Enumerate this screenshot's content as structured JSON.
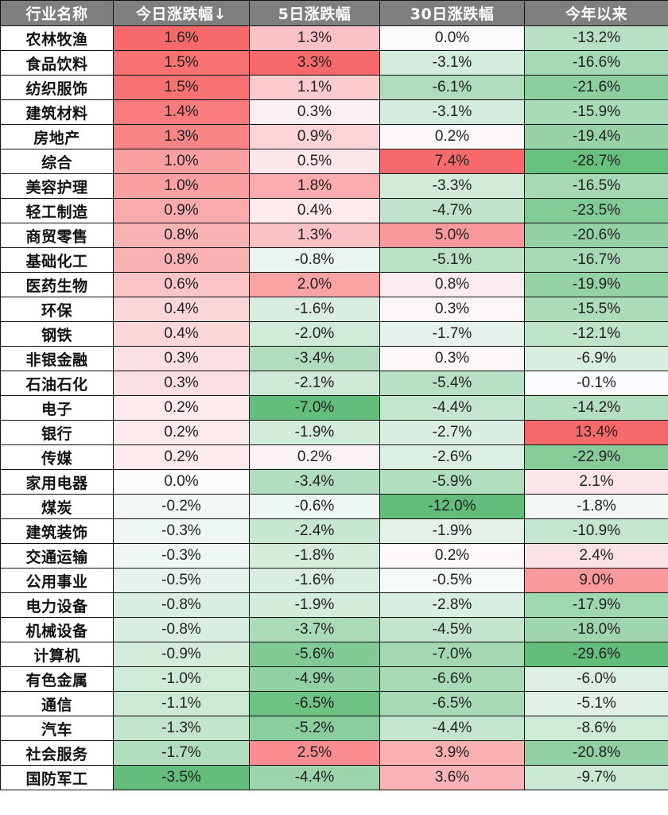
{
  "table": {
    "headers": [
      "行业名称",
      "今日涨跌幅↓",
      "5日涨跌幅",
      "30日涨跌幅",
      "今年以来"
    ],
    "sort": {
      "column": 1,
      "direction": "desc",
      "indicator": "↓"
    },
    "colors": {
      "header_bg": "#7f7f7f",
      "header_text": "#ffffff",
      "positive_strong": "#f8696b",
      "negative_strong": "#63be7b",
      "neutral": "#fcfcff",
      "border": "#111111"
    },
    "rows": [
      {
        "name": "农林牧渔",
        "d1": "1.6%",
        "d5": "1.3%",
        "d30": "0.0%",
        "ytd": "-13.2%"
      },
      {
        "name": "食品饮料",
        "d1": "1.5%",
        "d5": "3.3%",
        "d30": "-3.1%",
        "ytd": "-16.6%"
      },
      {
        "name": "纺织服饰",
        "d1": "1.5%",
        "d5": "1.1%",
        "d30": "-6.1%",
        "ytd": "-21.6%"
      },
      {
        "name": "建筑材料",
        "d1": "1.4%",
        "d5": "0.3%",
        "d30": "-3.1%",
        "ytd": "-15.9%"
      },
      {
        "name": "房地产",
        "d1": "1.3%",
        "d5": "0.9%",
        "d30": "0.2%",
        "ytd": "-19.4%"
      },
      {
        "name": "综合",
        "d1": "1.0%",
        "d5": "0.5%",
        "d30": "7.4%",
        "ytd": "-28.7%"
      },
      {
        "name": "美容护理",
        "d1": "1.0%",
        "d5": "1.8%",
        "d30": "-3.3%",
        "ytd": "-16.5%"
      },
      {
        "name": "轻工制造",
        "d1": "0.9%",
        "d5": "0.4%",
        "d30": "-4.7%",
        "ytd": "-23.5%"
      },
      {
        "name": "商贸零售",
        "d1": "0.8%",
        "d5": "1.3%",
        "d30": "5.0%",
        "ytd": "-20.6%"
      },
      {
        "name": "基础化工",
        "d1": "0.8%",
        "d5": "-0.8%",
        "d30": "-5.1%",
        "ytd": "-16.7%"
      },
      {
        "name": "医药生物",
        "d1": "0.6%",
        "d5": "2.0%",
        "d30": "0.8%",
        "ytd": "-19.9%"
      },
      {
        "name": "环保",
        "d1": "0.4%",
        "d5": "-1.6%",
        "d30": "0.3%",
        "ytd": "-15.5%"
      },
      {
        "name": "钢铁",
        "d1": "0.4%",
        "d5": "-2.0%",
        "d30": "-1.7%",
        "ytd": "-12.1%"
      },
      {
        "name": "非银金融",
        "d1": "0.3%",
        "d5": "-3.4%",
        "d30": "0.3%",
        "ytd": "-6.9%"
      },
      {
        "name": "石油石化",
        "d1": "0.3%",
        "d5": "-2.1%",
        "d30": "-5.4%",
        "ytd": "-0.1%"
      },
      {
        "name": "电子",
        "d1": "0.2%",
        "d5": "-7.0%",
        "d30": "-4.4%",
        "ytd": "-14.2%"
      },
      {
        "name": "银行",
        "d1": "0.2%",
        "d5": "-1.9%",
        "d30": "-2.7%",
        "ytd": "13.4%"
      },
      {
        "name": "传媒",
        "d1": "0.2%",
        "d5": "0.2%",
        "d30": "-2.6%",
        "ytd": "-22.9%"
      },
      {
        "name": "家用电器",
        "d1": "0.0%",
        "d5": "-3.4%",
        "d30": "-5.9%",
        "ytd": "2.1%"
      },
      {
        "name": "煤炭",
        "d1": "-0.2%",
        "d5": "-0.6%",
        "d30": "-12.0%",
        "ytd": "-1.8%"
      },
      {
        "name": "建筑装饰",
        "d1": "-0.3%",
        "d5": "-2.4%",
        "d30": "-1.9%",
        "ytd": "-10.9%"
      },
      {
        "name": "交通运输",
        "d1": "-0.3%",
        "d5": "-1.8%",
        "d30": "0.2%",
        "ytd": "2.4%"
      },
      {
        "name": "公用事业",
        "d1": "-0.5%",
        "d5": "-1.6%",
        "d30": "-0.5%",
        "ytd": "9.0%"
      },
      {
        "name": "电力设备",
        "d1": "-0.8%",
        "d5": "-1.9%",
        "d30": "-2.8%",
        "ytd": "-17.9%"
      },
      {
        "name": "机械设备",
        "d1": "-0.8%",
        "d5": "-3.7%",
        "d30": "-4.5%",
        "ytd": "-18.0%"
      },
      {
        "name": "计算机",
        "d1": "-0.9%",
        "d5": "-5.6%",
        "d30": "-7.0%",
        "ytd": "-29.6%"
      },
      {
        "name": "有色金属",
        "d1": "-1.0%",
        "d5": "-4.9%",
        "d30": "-6.6%",
        "ytd": "-6.0%"
      },
      {
        "name": "通信",
        "d1": "-1.1%",
        "d5": "-6.5%",
        "d30": "-6.5%",
        "ytd": "-5.1%"
      },
      {
        "name": "汽车",
        "d1": "-1.3%",
        "d5": "-5.2%",
        "d30": "-4.4%",
        "ytd": "-8.6%"
      },
      {
        "name": "社会服务",
        "d1": "-1.7%",
        "d5": "2.5%",
        "d30": "3.9%",
        "ytd": "-20.8%"
      },
      {
        "name": "国防军工",
        "d1": "-3.5%",
        "d5": "-4.4%",
        "d30": "3.6%",
        "ytd": "-9.7%"
      }
    ]
  }
}
